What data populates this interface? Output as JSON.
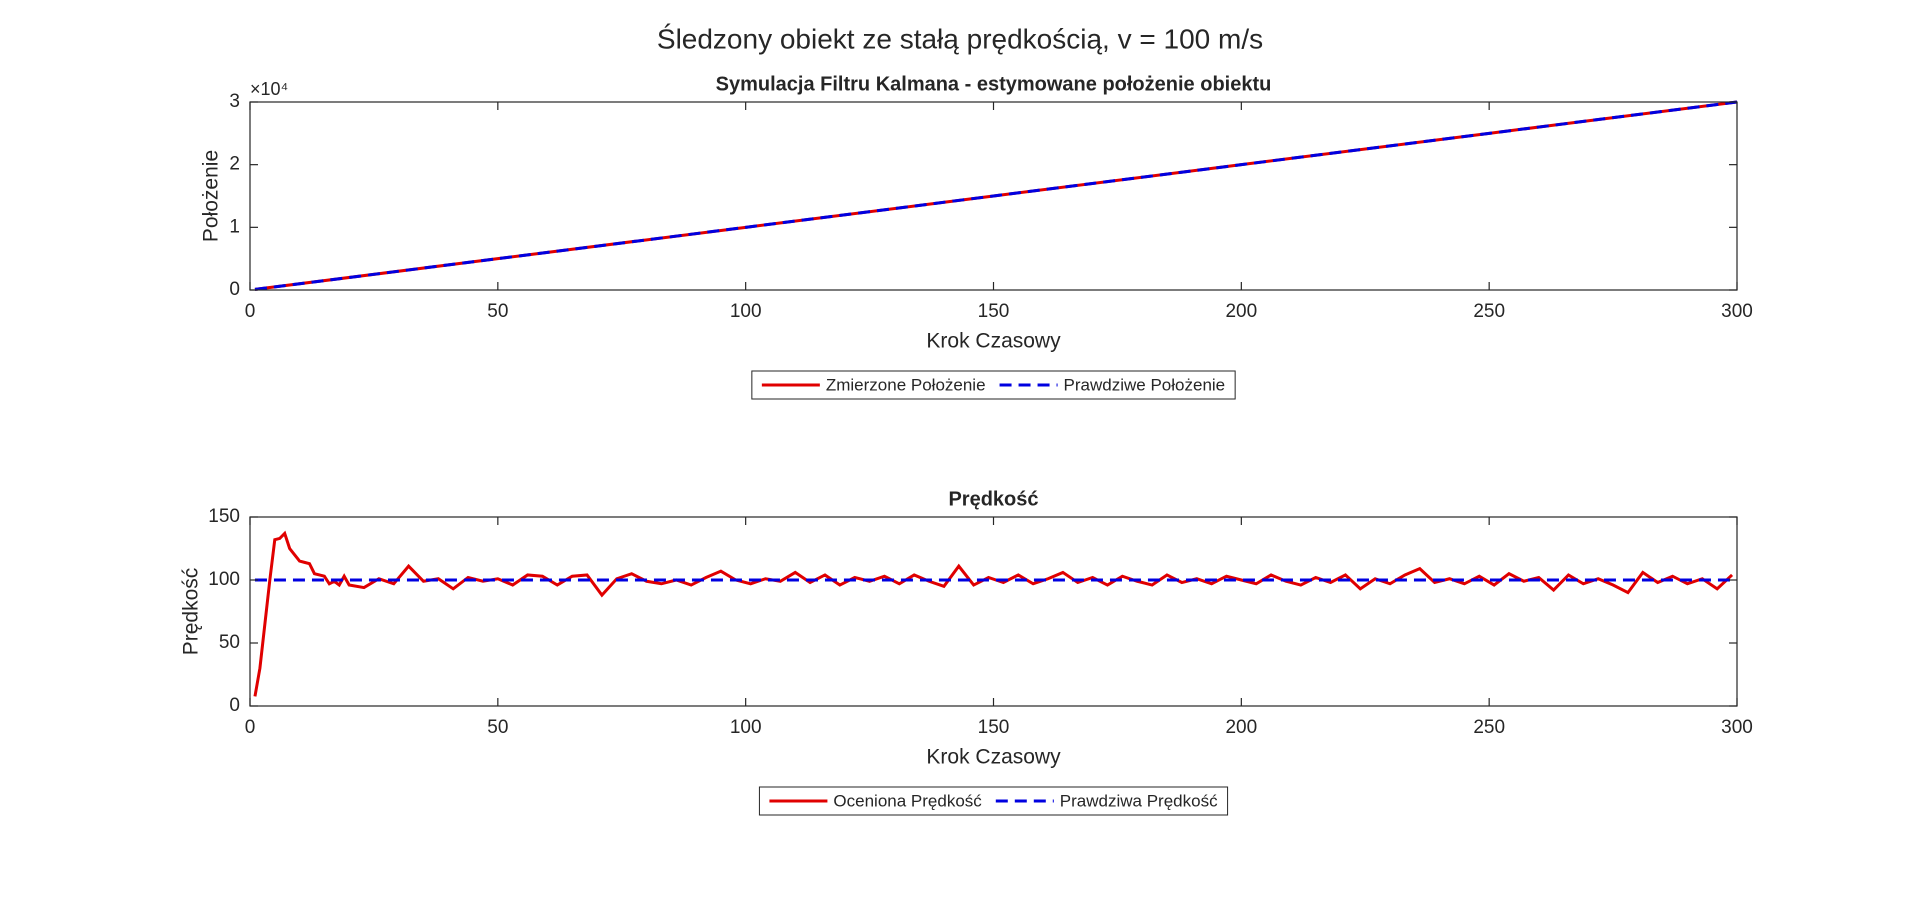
{
  "title": "Śledzony obiekt ze stałą prędkością, v = 100 m/s",
  "chart_data": [
    {
      "type": "line",
      "title": "Symulacja Filtru Kalmana - estymowane położenie obiektu",
      "x_label": "Krok Czasowy",
      "y_label": "Położenie",
      "y_exponent_label": "×10⁴",
      "x": [
        1,
        50,
        100,
        150,
        200,
        250,
        300
      ],
      "series": [
        {
          "name": "Zmierzone Położenie",
          "color": "#e00000",
          "line_style": "solid",
          "values": [
            100,
            5000,
            10000,
            15000,
            20000,
            25000,
            30000
          ]
        },
        {
          "name": "Prawdziwe Położenie",
          "color": "#0000e0",
          "line_style": "dashed",
          "values": [
            100,
            5000,
            10000,
            15000,
            20000,
            25000,
            30000
          ]
        }
      ],
      "xlim": [
        0,
        300
      ],
      "xticks": [
        0,
        50,
        100,
        150,
        200,
        250,
        300
      ],
      "ylim": [
        0,
        30000
      ],
      "yticks": [
        0,
        {
          "value": 10000,
          "label": "1"
        },
        {
          "value": 20000,
          "label": "2"
        },
        {
          "value": 30000,
          "label": "3"
        }
      ],
      "legend": "bottom-outside"
    },
    {
      "type": "line",
      "title": "Prędkość",
      "x_label": "Krok Czasowy",
      "y_label": "Prędkość",
      "x": [
        1,
        2,
        3,
        4,
        5,
        6,
        7,
        8,
        9,
        10,
        11,
        12,
        13,
        14,
        15,
        16,
        17,
        18,
        19,
        20,
        23,
        26,
        29,
        32,
        35,
        38,
        41,
        44,
        47,
        50,
        53,
        56,
        59,
        62,
        65,
        68,
        71,
        74,
        77,
        80,
        83,
        86,
        89,
        92,
        95,
        98,
        101,
        104,
        107,
        110,
        113,
        116,
        119,
        122,
        125,
        128,
        131,
        134,
        137,
        140,
        143,
        146,
        149,
        152,
        155,
        158,
        161,
        164,
        167,
        170,
        173,
        176,
        179,
        182,
        185,
        188,
        191,
        194,
        197,
        200,
        203,
        206,
        209,
        212,
        215,
        218,
        221,
        224,
        227,
        230,
        233,
        236,
        239,
        242,
        245,
        248,
        251,
        254,
        257,
        260,
        263,
        266,
        269,
        272,
        275,
        278,
        281,
        284,
        287,
        290,
        293,
        296,
        299
      ],
      "series": [
        {
          "name": "Oceniona Prędkość",
          "color": "#e00000",
          "line_style": "solid",
          "values": [
            7.6,
            30,
            65,
            100,
            132,
            133,
            137,
            125,
            120,
            115,
            114,
            113,
            105,
            104,
            103,
            97,
            99,
            96,
            103,
            96,
            94,
            101,
            97,
            111,
            99,
            101,
            93,
            102,
            99,
            101,
            96,
            104,
            103,
            96,
            103,
            104,
            88,
            101,
            105,
            99,
            97,
            100,
            96,
            102,
            107,
            100,
            97,
            101,
            99,
            106,
            98,
            104,
            96,
            102,
            99,
            103,
            97,
            104,
            99,
            95,
            111,
            96,
            102,
            98,
            104,
            97,
            101,
            106,
            98,
            102,
            96,
            103,
            99,
            96,
            104,
            98,
            101,
            97,
            103,
            100,
            97,
            104,
            99,
            96,
            102,
            98,
            104,
            93,
            101,
            97,
            104,
            109,
            98,
            101,
            97,
            103,
            96,
            105,
            99,
            102,
            92,
            104,
            97,
            101,
            96,
            90,
            106,
            98,
            103,
            97,
            101,
            93,
            104
          ]
        },
        {
          "name": "Prawdziwa Prędkość",
          "color": "#0000e0",
          "line_style": "dashed",
          "x": [
            1,
            300
          ],
          "values": [
            100,
            100
          ]
        }
      ],
      "xlim": [
        0,
        300
      ],
      "xticks": [
        0,
        50,
        100,
        150,
        200,
        250,
        300
      ],
      "ylim": [
        0,
        150
      ],
      "yticks": [
        0,
        50,
        100,
        150
      ],
      "legend": "bottom-outside"
    }
  ]
}
